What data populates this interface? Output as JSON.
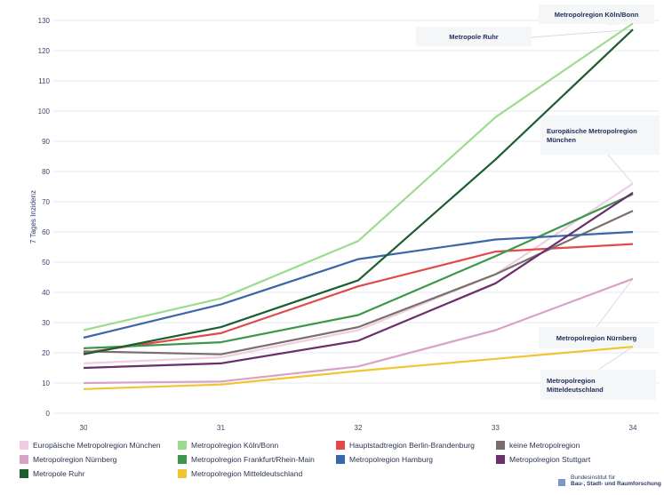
{
  "chart_data": {
    "type": "line",
    "title": "",
    "xlabel": "",
    "ylabel": "7 Tages Inzidenz",
    "x": [
      30,
      31,
      32,
      33,
      34
    ],
    "ylim": [
      0,
      130
    ],
    "yticks": [
      0,
      10,
      20,
      30,
      40,
      50,
      60,
      70,
      80,
      90,
      100,
      110,
      120,
      130
    ],
    "grid": true,
    "legend_position": "bottom",
    "series": [
      {
        "name": "Europäische Metropolregion München",
        "color": "#f0cde0",
        "values": [
          16.5,
          18.5,
          27.5,
          46,
          76
        ]
      },
      {
        "name": "Metropolregion Köln/Bonn",
        "color": "#9ddc8e",
        "values": [
          27.5,
          38,
          57,
          98,
          129
        ]
      },
      {
        "name": "Hauptstadtregion Berlin-Brandenburg",
        "color": "#e24a4a",
        "values": [
          20,
          26.5,
          42,
          53.5,
          56
        ]
      },
      {
        "name": "keine Metropolregion",
        "color": "#7a6e6e",
        "values": [
          20.5,
          19.5,
          28.5,
          46,
          67
        ]
      },
      {
        "name": "Metropolregion Nürnberg",
        "color": "#d7a2c6",
        "values": [
          10,
          10.5,
          15.5,
          27.5,
          44.5
        ]
      },
      {
        "name": "Metropolregion Frankfurt/Rhein-Main",
        "color": "#3b974a",
        "values": [
          21.5,
          23.5,
          32.5,
          52,
          72.5
        ]
      },
      {
        "name": "Metropolregion Hamburg",
        "color": "#3b66a8",
        "values": [
          25,
          36,
          51,
          57.5,
          60
        ]
      },
      {
        "name": "Metropolregion Stuttgart",
        "color": "#6b2f6b",
        "values": [
          15,
          16.5,
          24,
          43,
          73
        ]
      },
      {
        "name": "Metropole Ruhr",
        "color": "#1c5e30",
        "values": [
          19.5,
          28.5,
          44,
          84,
          127
        ]
      },
      {
        "name": "Metropolregion Mitteldeutschland",
        "color": "#f2c431",
        "values": [
          8,
          9.5,
          14,
          18,
          22
        ]
      }
    ],
    "annotations": [
      {
        "lines": [
          "Metropolregion Köln/Bonn"
        ],
        "series": "Metropolregion Köln/Bonn"
      },
      {
        "lines": [
          "Metropole Ruhr"
        ],
        "series": "Metropole Ruhr"
      },
      {
        "lines": [
          "Europäische Metropolregion",
          "München"
        ],
        "series": "Europäische Metropolregion München"
      },
      {
        "lines": [
          "Metropolregion Nürnberg"
        ],
        "series": "Metropolregion Nürnberg"
      },
      {
        "lines": [
          "Metropolregion",
          "Mitteldeutschland"
        ],
        "series": "Metropolregion Mitteldeutschland"
      }
    ]
  },
  "logo": {
    "line1": "Bundesinstitut für",
    "line2": "Bau-, Stadt- und Raumforschung"
  }
}
